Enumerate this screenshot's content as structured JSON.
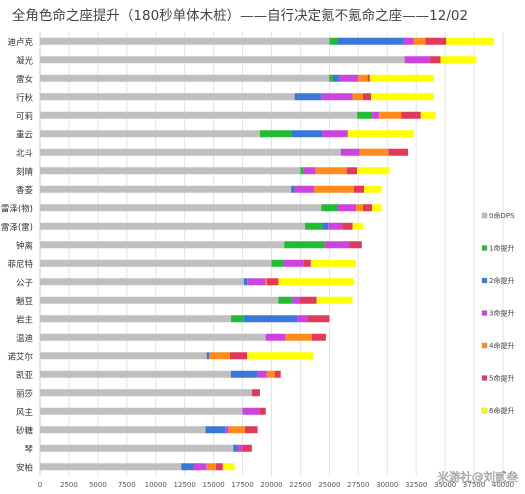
{
  "watermark": "米游社@刘贰叁",
  "chart_data": {
    "type": "bar",
    "orientation": "horizontal",
    "stacked": true,
    "title": "全角色命之座提升（180秒单体木桩）——自行决定氪不氪命之座——12/02",
    "xlim": [
      0,
      40000
    ],
    "xticks": [
      "0",
      "2500",
      "5000",
      "7500",
      "10000",
      "12500",
      "15000",
      "17500",
      "20000",
      "22500",
      "25000",
      "27500",
      "30000",
      "32500",
      "35000",
      "37500",
      "40000"
    ],
    "grid": true,
    "legend_position": "right",
    "categories": [
      "迪卢克",
      "凝光",
      "雷女",
      "行秋",
      "可莉",
      "重云",
      "北斗",
      "刻晴",
      "香菱",
      "雷泽(物)",
      "雷泽(雷)",
      "钟离",
      "菲尼特",
      "公子",
      "魈豆",
      "岩主",
      "温迪",
      "诺艾尔",
      "凯亚",
      "丽莎",
      "风主",
      "砂糖",
      "琴",
      "安柏"
    ],
    "series": [
      {
        "name": "0命DPS",
        "color": "#bfbfbf",
        "values": [
          25000,
          31500,
          25000,
          22000,
          27400,
          19000,
          26000,
          22500,
          21700,
          24300,
          22900,
          21100,
          20000,
          17600,
          20600,
          16500,
          19500,
          14400,
          16500,
          18300,
          17500,
          14300,
          16700,
          12200
        ]
      },
      {
        "name": "1命提升",
        "color": "#22bb33",
        "values": [
          700,
          0,
          300,
          0,
          1300,
          2700,
          0,
          300,
          0,
          1400,
          1500,
          3500,
          1000,
          0,
          1200,
          1100,
          0,
          0,
          0,
          0,
          0,
          0,
          0,
          0
        ]
      },
      {
        "name": "2命提升",
        "color": "#3a78d8",
        "values": [
          5700,
          0,
          600,
          2300,
          0,
          2700,
          0,
          0,
          300,
          0,
          500,
          0,
          0,
          300,
          0,
          4600,
          0,
          200,
          2300,
          0,
          0,
          1700,
          400,
          1100
        ]
      },
      {
        "name": "3命提升",
        "color": "#cc44dd",
        "values": [
          900,
          2200,
          1600,
          2700,
          600,
          2200,
          1600,
          1000,
          1700,
          1600,
          1200,
          2100,
          1800,
          1600,
          600,
          900,
          1700,
          0,
          800,
          0,
          1500,
          300,
          400,
          1100
        ]
      },
      {
        "name": "4命提升",
        "color": "#ff8c1a",
        "values": [
          1000,
          0,
          800,
          900,
          1900,
          0,
          2500,
          2700,
          3400,
          600,
          0,
          0,
          0,
          100,
          0,
          0,
          2300,
          1800,
          700,
          0,
          0,
          1400,
          0,
          800
        ]
      },
      {
        "name": "5命提升",
        "color": "#e03a5a",
        "values": [
          1800,
          900,
          200,
          700,
          1700,
          0,
          1700,
          900,
          900,
          800,
          900,
          1100,
          600,
          1000,
          1500,
          1900,
          1200,
          1500,
          500,
          700,
          500,
          1100,
          800,
          600
        ]
      },
      {
        "name": "6命提升",
        "color": "#ffff00",
        "values": [
          4100,
          3100,
          5500,
          5400,
          1300,
          5700,
          0,
          2800,
          1500,
          800,
          900,
          0,
          3900,
          6500,
          3100,
          0,
          0,
          5700,
          0,
          0,
          0,
          0,
          0,
          1000
        ]
      }
    ]
  }
}
